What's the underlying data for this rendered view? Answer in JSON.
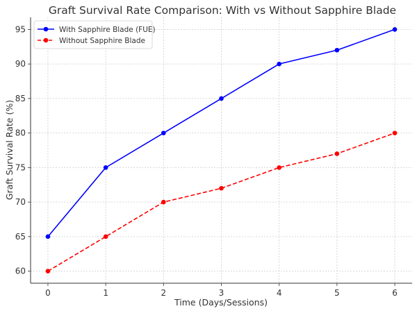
{
  "chart_data": {
    "type": "line",
    "title": "Graft Survival Rate Comparison: With vs Without Sapphire Blade",
    "xlabel": "Time (Days/Sessions)",
    "ylabel": "Graft Survival Rate (%)",
    "x": [
      0,
      1,
      2,
      3,
      4,
      5,
      6
    ],
    "x_ticks": [
      "0",
      "1",
      "2",
      "3",
      "4",
      "5",
      "6"
    ],
    "y_ticks": [
      "60",
      "65",
      "70",
      "75",
      "80",
      "85",
      "90",
      "95"
    ],
    "xlim": [
      -0.3,
      6.3
    ],
    "ylim": [
      58.25,
      96.75
    ],
    "grid": true,
    "legend_position": "upper left",
    "series": [
      {
        "name": "With Sapphire Blade (FUE)",
        "values": [
          65,
          75,
          80,
          85,
          90,
          92,
          95
        ],
        "color": "#0000ff",
        "line_style": "solid",
        "marker": "circle"
      },
      {
        "name": "Without Sapphire Blade",
        "values": [
          60,
          65,
          70,
          72,
          75,
          77,
          80
        ],
        "color": "#ff0000",
        "line_style": "dashed",
        "marker": "circle"
      }
    ]
  }
}
